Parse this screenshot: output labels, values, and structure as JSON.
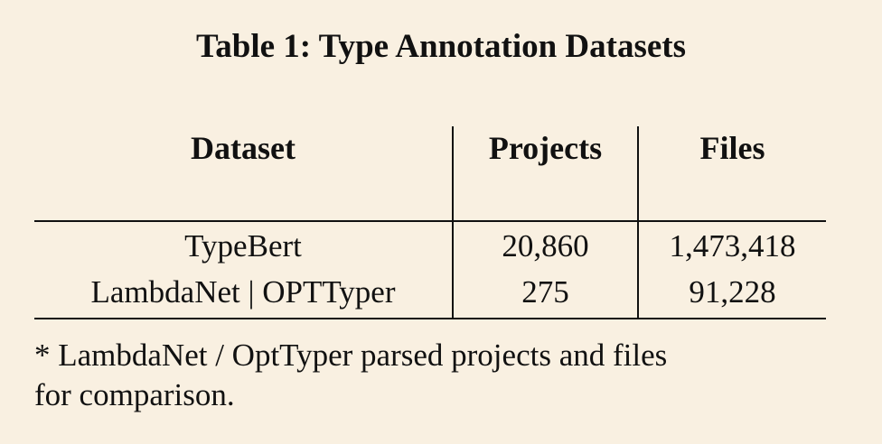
{
  "caption": "Table 1: Type Annotation Datasets",
  "table": {
    "headers": [
      "Dataset",
      "Projects",
      "Files"
    ],
    "rows": [
      [
        "TypeBert",
        "20,860",
        "1,473,418"
      ],
      [
        "LambdaNet | OPTTyper",
        "275",
        "91,228"
      ]
    ]
  },
  "note_line1": "* LambdaNet / OptTyper parsed projects and files",
  "note_line2": "for comparison."
}
